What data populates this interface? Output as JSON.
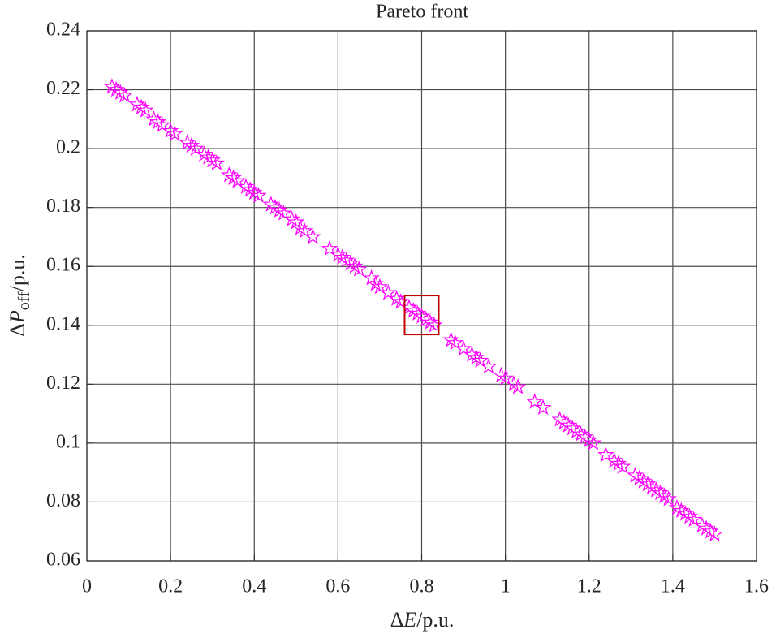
{
  "chart_data": {
    "type": "scatter",
    "title": "Pareto front",
    "xlabel": [
      "Δ",
      "E",
      "/p.u."
    ],
    "ylabel": [
      "Δ",
      "P",
      "off",
      "/p.u."
    ],
    "xlim": [
      0,
      1.6
    ],
    "xticks": [
      0,
      0.2,
      0.4,
      0.6,
      0.8,
      1,
      1.2,
      1.4,
      1.6
    ],
    "ylim": [
      0.06,
      0.24
    ],
    "yticks": [
      0.06,
      0.08,
      0.1,
      0.12,
      0.14,
      0.16,
      0.18,
      0.2,
      0.22,
      0.24
    ],
    "grid": true,
    "marker": "star",
    "series": [
      {
        "color": "#ff00ff",
        "x": [
          0.06,
          0.07,
          0.08,
          0.09,
          0.12,
          0.13,
          0.14,
          0.16,
          0.17,
          0.18,
          0.2,
          0.21,
          0.24,
          0.25,
          0.26,
          0.28,
          0.29,
          0.3,
          0.31,
          0.34,
          0.35,
          0.36,
          0.38,
          0.39,
          0.4,
          0.41,
          0.44,
          0.45,
          0.46,
          0.47,
          0.49,
          0.5,
          0.51,
          0.52,
          0.54,
          0.58,
          0.6,
          0.61,
          0.62,
          0.63,
          0.64,
          0.65,
          0.68,
          0.69,
          0.7,
          0.72,
          0.74,
          0.75,
          0.77,
          0.78,
          0.79,
          0.8,
          0.81,
          0.82,
          0.83,
          0.87,
          0.88,
          0.9,
          0.92,
          0.93,
          0.94,
          0.96,
          0.99,
          1.0,
          1.02,
          1.03,
          1.07,
          1.09,
          1.13,
          1.14,
          1.15,
          1.16,
          1.17,
          1.18,
          1.19,
          1.2,
          1.21,
          1.24,
          1.26,
          1.27,
          1.28,
          1.31,
          1.32,
          1.33,
          1.34,
          1.35,
          1.36,
          1.37,
          1.38,
          1.39,
          1.41,
          1.42,
          1.43,
          1.44,
          1.45,
          1.47,
          1.48,
          1.49,
          1.5
        ],
        "values": [
          0.221,
          0.22,
          0.219,
          0.218,
          0.215,
          0.214,
          0.213,
          0.21,
          0.209,
          0.208,
          0.206,
          0.205,
          0.202,
          0.201,
          0.2,
          0.198,
          0.197,
          0.196,
          0.195,
          0.191,
          0.19,
          0.189,
          0.187,
          0.186,
          0.185,
          0.184,
          0.181,
          0.18,
          0.179,
          0.178,
          0.176,
          0.175,
          0.173,
          0.172,
          0.17,
          0.166,
          0.164,
          0.163,
          0.162,
          0.161,
          0.16,
          0.159,
          0.156,
          0.154,
          0.153,
          0.151,
          0.149,
          0.148,
          0.146,
          0.145,
          0.144,
          0.143,
          0.142,
          0.141,
          0.14,
          0.135,
          0.134,
          0.132,
          0.13,
          0.129,
          0.128,
          0.126,
          0.123,
          0.122,
          0.12,
          0.119,
          0.114,
          0.112,
          0.108,
          0.107,
          0.106,
          0.105,
          0.104,
          0.103,
          0.102,
          0.101,
          0.1,
          0.096,
          0.094,
          0.093,
          0.092,
          0.089,
          0.088,
          0.087,
          0.086,
          0.085,
          0.084,
          0.083,
          0.082,
          0.081,
          0.078,
          0.077,
          0.076,
          0.075,
          0.074,
          0.072,
          0.071,
          0.07,
          0.069
        ]
      }
    ],
    "highlight": {
      "x": 0.8,
      "y": 0.1435,
      "color": "#c00000"
    }
  }
}
